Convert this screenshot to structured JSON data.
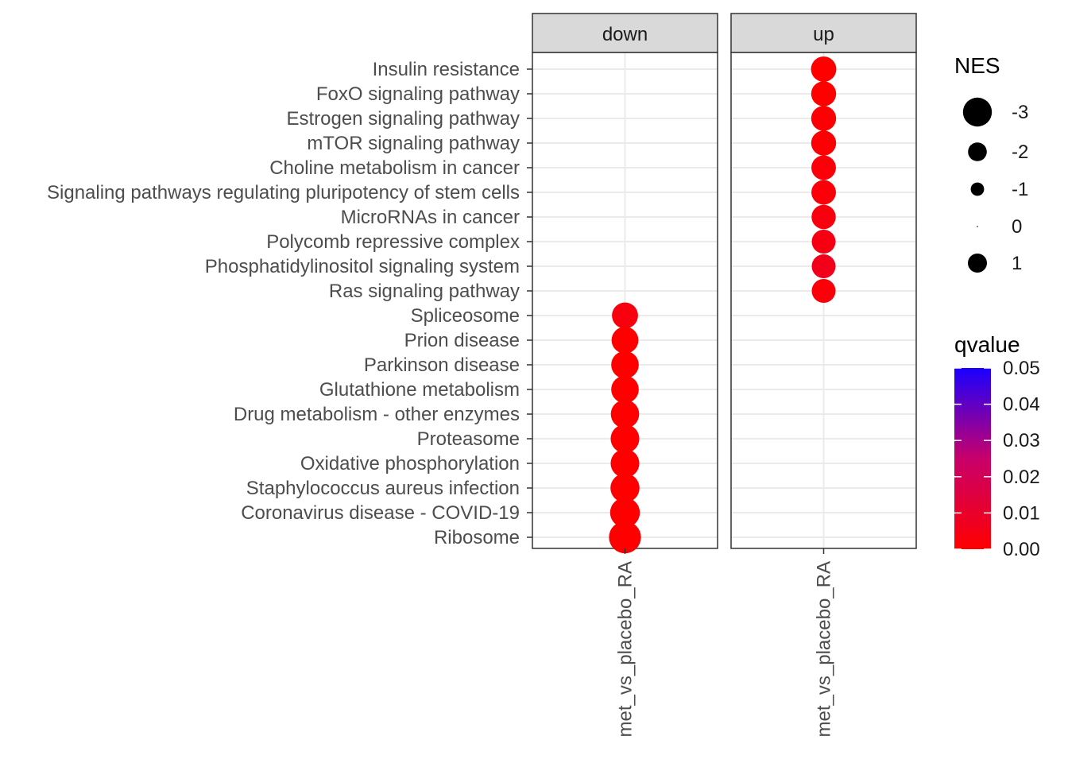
{
  "chart_data": {
    "type": "scatter",
    "facets": [
      "down",
      "up"
    ],
    "x_category": "met_vs_placebo_RA",
    "y_categories": [
      "Insulin resistance",
      "FoxO signaling pathway",
      "Estrogen signaling pathway",
      "mTOR signaling pathway",
      "Choline metabolism in cancer",
      "Signaling pathways regulating pluripotency of stem cells",
      "MicroRNAs in cancer",
      "Polycomb repressive complex",
      "Phosphatidylinositol signaling system",
      "Ras signaling pathway",
      "Spliceosome",
      "Prion disease",
      "Parkinson disease",
      "Glutathione metabolism",
      "Drug metabolism - other enzymes",
      "Proteasome",
      "Oxidative phosphorylation",
      "Staphylococcus aureus infection",
      "Coronavirus disease - COVID-19",
      "Ribosome"
    ],
    "points": [
      {
        "facet": "up",
        "y": "Insulin resistance",
        "NES": 1.9,
        "qvalue": 0.0
      },
      {
        "facet": "up",
        "y": "FoxO signaling pathway",
        "NES": 1.85,
        "qvalue": 0.0
      },
      {
        "facet": "up",
        "y": "Estrogen signaling pathway",
        "NES": 1.85,
        "qvalue": 0.001
      },
      {
        "facet": "up",
        "y": "mTOR signaling pathway",
        "NES": 1.85,
        "qvalue": 0.001
      },
      {
        "facet": "up",
        "y": "Choline metabolism in cancer",
        "NES": 1.8,
        "qvalue": 0.002
      },
      {
        "facet": "up",
        "y": "Signaling pathways regulating pluripotency of stem cells",
        "NES": 1.8,
        "qvalue": 0.002
      },
      {
        "facet": "up",
        "y": "MicroRNAs in cancer",
        "NES": 1.75,
        "qvalue": 0.003
      },
      {
        "facet": "up",
        "y": "Polycomb repressive complex",
        "NES": 1.7,
        "qvalue": 0.004
      },
      {
        "facet": "up",
        "y": "Phosphatidylinositol signaling system",
        "NES": 1.7,
        "qvalue": 0.006
      },
      {
        "facet": "up",
        "y": "Ras signaling pathway",
        "NES": 1.7,
        "qvalue": 0.002
      },
      {
        "facet": "down",
        "y": "Spliceosome",
        "NES": -2.0,
        "qvalue": 0.003
      },
      {
        "facet": "down",
        "y": "Prion disease",
        "NES": -2.1,
        "qvalue": 0.0
      },
      {
        "facet": "down",
        "y": "Parkinson disease",
        "NES": -2.2,
        "qvalue": 0.0
      },
      {
        "facet": "down",
        "y": "Glutathione metabolism",
        "NES": -2.2,
        "qvalue": 0.0
      },
      {
        "facet": "down",
        "y": "Drug metabolism - other enzymes",
        "NES": -2.3,
        "qvalue": 0.0
      },
      {
        "facet": "down",
        "y": "Proteasome",
        "NES": -2.35,
        "qvalue": 0.0
      },
      {
        "facet": "down",
        "y": "Oxidative phosphorylation",
        "NES": -2.35,
        "qvalue": 0.0
      },
      {
        "facet": "down",
        "y": "Staphylococcus aureus infection",
        "NES": -2.4,
        "qvalue": 0.0
      },
      {
        "facet": "down",
        "y": "Coronavirus disease - COVID-19",
        "NES": -2.5,
        "qvalue": 0.0
      },
      {
        "facet": "down",
        "y": "Ribosome",
        "NES": -2.8,
        "qvalue": 0.0
      }
    ],
    "legend_size": {
      "title": "NES",
      "labels": [
        "-3",
        "-2",
        "-1",
        "0",
        "1"
      ],
      "values": [
        -3,
        -2,
        -1,
        0,
        1
      ]
    },
    "legend_color": {
      "title": "qvalue",
      "labels": [
        "0.05",
        "0.04",
        "0.03",
        "0.02",
        "0.01",
        "0.00"
      ],
      "values": [
        0.05,
        0.04,
        0.03,
        0.02,
        0.01,
        0.0
      ],
      "low_color": "#FF0000",
      "high_color": "#0000FF"
    },
    "panel_grid_color": "#EBEBEB",
    "strip_fill": "#D9D9D9",
    "legend_position": "right"
  }
}
